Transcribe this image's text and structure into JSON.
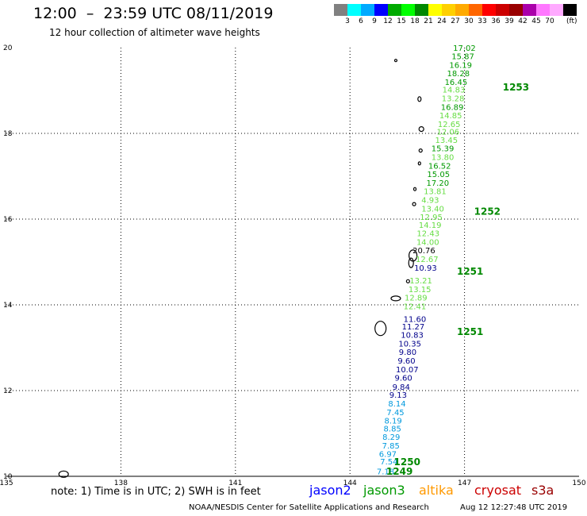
{
  "header": {
    "title": "12:00  –  23:59 UTC 08/11/2019",
    "subtitle": "12 hour collection of altimeter wave heights"
  },
  "legend": {
    "colors": [
      "#808080",
      "#00ffff",
      "#00aaff",
      "#0000ff",
      "#00aa00",
      "#00ff00",
      "#008800",
      "#ffff00",
      "#ffd000",
      "#ffaa00",
      "#ff6600",
      "#ff0000",
      "#cc0000",
      "#990000",
      "#aa00aa",
      "#ff77ff",
      "#ffaaff",
      "#000000"
    ],
    "labels": [
      "3",
      "6",
      "9",
      "12",
      "15",
      "18",
      "21",
      "24",
      "27",
      "30",
      "33",
      "36",
      "39",
      "42",
      "45",
      "70"
    ],
    "unit": "(ft)"
  },
  "map": {
    "lon_range": [
      135,
      150
    ],
    "lat_range": [
      10,
      20
    ],
    "x_ticks": [
      "135",
      "138",
      "141",
      "144",
      "147",
      "150"
    ],
    "y_ticks": [
      "20",
      "18",
      "16",
      "14",
      "12",
      "10"
    ],
    "grid": "dotted"
  },
  "observations": [
    {
      "label": "7.18",
      "lon": 144.7,
      "lat": 10.05,
      "color": "#0099dd"
    },
    {
      "label": "7.54",
      "lon": 144.79,
      "lat": 10.28,
      "color": "#0099dd"
    },
    {
      "label": "6.97",
      "lon": 144.76,
      "lat": 10.45,
      "color": "#0099dd"
    },
    {
      "label": "7.85",
      "lon": 144.84,
      "lat": 10.65,
      "color": "#0099dd"
    },
    {
      "label": "8.29",
      "lon": 144.85,
      "lat": 10.85,
      "color": "#0099dd"
    },
    {
      "label": "8.85",
      "lon": 144.88,
      "lat": 11.05,
      "color": "#0099dd"
    },
    {
      "label": "8.19",
      "lon": 144.9,
      "lat": 11.23,
      "color": "#0099dd"
    },
    {
      "label": "7.45",
      "lon": 144.96,
      "lat": 11.43,
      "color": "#0099dd"
    },
    {
      "label": "8.14",
      "lon": 145.0,
      "lat": 11.63,
      "color": "#0099dd"
    },
    {
      "label": "9.13",
      "lon": 145.03,
      "lat": 11.83,
      "color": "#00008b"
    },
    {
      "label": "9.84",
      "lon": 145.11,
      "lat": 12.02,
      "color": "#00008b"
    },
    {
      "label": "9.60",
      "lon": 145.17,
      "lat": 12.23,
      "color": "#00008b"
    },
    {
      "label": "10.07",
      "lon": 145.2,
      "lat": 12.43,
      "color": "#00008b"
    },
    {
      "label": "9.60",
      "lon": 145.25,
      "lat": 12.63,
      "color": "#00008b"
    },
    {
      "label": "9.80",
      "lon": 145.28,
      "lat": 12.83,
      "color": "#00008b"
    },
    {
      "label": "10.35",
      "lon": 145.27,
      "lat": 13.03,
      "color": "#00008b"
    },
    {
      "label": "10.83",
      "lon": 145.33,
      "lat": 13.23,
      "color": "#00008b"
    },
    {
      "label": "11.27",
      "lon": 145.36,
      "lat": 13.43,
      "color": "#00008b"
    },
    {
      "label": "11.60",
      "lon": 145.4,
      "lat": 13.6,
      "color": "#00008b"
    },
    {
      "label": "12.41",
      "lon": 145.4,
      "lat": 13.9,
      "color": "#66dd44"
    },
    {
      "label": "12.89",
      "lon": 145.43,
      "lat": 14.1,
      "color": "#66dd44"
    },
    {
      "label": "13.15",
      "lon": 145.53,
      "lat": 14.3,
      "color": "#66dd44"
    },
    {
      "label": "13.21",
      "lon": 145.56,
      "lat": 14.5,
      "color": "#66dd44"
    },
    {
      "label": "10.93",
      "lon": 145.68,
      "lat": 14.8,
      "color": "#00008b"
    },
    {
      "label": "12.67",
      "lon": 145.72,
      "lat": 15.0,
      "color": "#66dd44"
    },
    {
      "label": "20.76",
      "lon": 145.64,
      "lat": 15.2,
      "color": "#000000"
    },
    {
      "label": "14.00",
      "lon": 145.74,
      "lat": 15.4,
      "color": "#66dd44"
    },
    {
      "label": "12.43",
      "lon": 145.75,
      "lat": 15.6,
      "color": "#66dd44"
    },
    {
      "label": "14.19",
      "lon": 145.8,
      "lat": 15.8,
      "color": "#66dd44"
    },
    {
      "label": "12.95",
      "lon": 145.83,
      "lat": 15.98,
      "color": "#66dd44"
    },
    {
      "label": "13.40",
      "lon": 145.87,
      "lat": 16.18,
      "color": "#66dd44"
    },
    {
      "label": "4.93",
      "lon": 145.87,
      "lat": 16.38,
      "color": "#66dd44"
    },
    {
      "label": "13.81",
      "lon": 145.93,
      "lat": 16.58,
      "color": "#66dd44"
    },
    {
      "label": "17.20",
      "lon": 146.0,
      "lat": 16.78,
      "color": "#009900"
    },
    {
      "label": "15.05",
      "lon": 146.02,
      "lat": 16.98,
      "color": "#009900"
    },
    {
      "label": "16.52",
      "lon": 146.05,
      "lat": 17.18,
      "color": "#009900"
    },
    {
      "label": "13.80",
      "lon": 146.13,
      "lat": 17.38,
      "color": "#66dd44"
    },
    {
      "label": "15.39",
      "lon": 146.13,
      "lat": 17.58,
      "color": "#009900"
    },
    {
      "label": "13.45",
      "lon": 146.23,
      "lat": 17.78,
      "color": "#66dd44"
    },
    {
      "label": "12.06",
      "lon": 146.27,
      "lat": 17.97,
      "color": "#66dd44"
    },
    {
      "label": "12.65",
      "lon": 146.3,
      "lat": 18.15,
      "color": "#66dd44"
    },
    {
      "label": "14.85",
      "lon": 146.34,
      "lat": 18.35,
      "color": "#66dd44"
    },
    {
      "label": "16.89",
      "lon": 146.38,
      "lat": 18.55,
      "color": "#009900"
    },
    {
      "label": "13.28",
      "lon": 146.4,
      "lat": 18.75,
      "color": "#66dd44"
    },
    {
      "label": "14.83",
      "lon": 146.42,
      "lat": 18.95,
      "color": "#66dd44"
    },
    {
      "label": "16.45",
      "lon": 146.48,
      "lat": 19.13,
      "color": "#009900"
    },
    {
      "label": "18.28",
      "lon": 146.54,
      "lat": 19.33,
      "color": "#009900"
    },
    {
      "label": "16.19",
      "lon": 146.6,
      "lat": 19.53,
      "color": "#009900"
    },
    {
      "label": "15.87",
      "lon": 146.66,
      "lat": 19.73,
      "color": "#009900"
    },
    {
      "label": "17.02",
      "lon": 146.7,
      "lat": 19.93,
      "color": "#009900"
    }
  ],
  "orbits": [
    {
      "label": "1249",
      "lon": 144.95,
      "lat": 10.04
    },
    {
      "label": "1250",
      "lon": 145.15,
      "lat": 10.26
    },
    {
      "label": "1251",
      "lon": 146.8,
      "lat": 13.3
    },
    {
      "label": "1251",
      "lon": 146.8,
      "lat": 14.7
    },
    {
      "label": "1252",
      "lon": 147.25,
      "lat": 16.1
    },
    {
      "label": "1253",
      "lon": 148.0,
      "lat": 19.0
    }
  ],
  "satellites": [
    {
      "label": "jason2",
      "color": "#0000ff"
    },
    {
      "label": "jason3",
      "color": "#009900"
    },
    {
      "label": "altika",
      "color": "#ff9900"
    },
    {
      "label": "cryosat",
      "color": "#cc0000"
    },
    {
      "label": "s3a",
      "color": "#990000"
    }
  ],
  "footer": {
    "note": "note: 1) Time is in UTC; 2) SWH is in feet",
    "credit": "NOAA/NESDIS Center for Satellite Applications and Research",
    "timestamp": "Aug 12 12:27:48 UTC 2019"
  }
}
